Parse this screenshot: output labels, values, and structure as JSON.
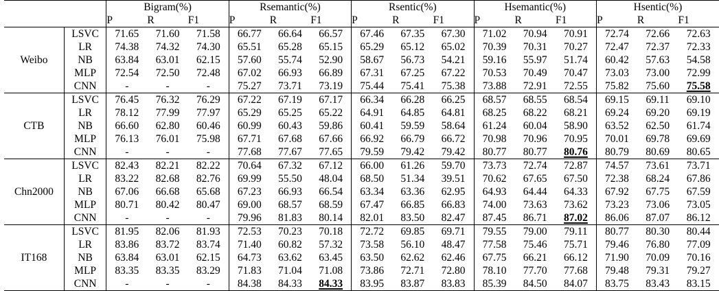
{
  "header": {
    "groups": [
      "Bigram(%)",
      "Rsemantic(%)",
      "Rsentic(%)",
      "Hsemantic(%)",
      "Hsentic(%)"
    ],
    "metrics": [
      "P",
      "R",
      "F1"
    ]
  },
  "datasets": [
    {
      "name": "Weibo",
      "rows": [
        {
          "model": "LSVC",
          "values": [
            "71.65",
            "71.60",
            "71.58",
            "66.77",
            "66.64",
            "66.57",
            "67.46",
            "67.35",
            "67.30",
            "71.02",
            "70.94",
            "70.91",
            "72.74",
            "72.66",
            "72.63"
          ]
        },
        {
          "model": "LR",
          "values": [
            "74.38",
            "74.32",
            "74.30",
            "65.51",
            "65.28",
            "65.15",
            "65.29",
            "65.12",
            "65.02",
            "70.39",
            "70.31",
            "70.27",
            "72.47",
            "72.37",
            "72.33"
          ]
        },
        {
          "model": "NB",
          "values": [
            "63.84",
            "63.01",
            "62.15",
            "57.60",
            "55.74",
            "52.90",
            "58.67",
            "56.73",
            "54.21",
            "59.16",
            "55.97",
            "51.74",
            "60.42",
            "57.63",
            "54.58"
          ]
        },
        {
          "model": "MLP",
          "values": [
            "72.54",
            "72.50",
            "72.48",
            "67.02",
            "66.93",
            "66.89",
            "67.31",
            "67.25",
            "67.22",
            "70.53",
            "70.49",
            "70.47",
            "73.03",
            "73.00",
            "72.99"
          ]
        },
        {
          "model": "CNN",
          "values": [
            "-",
            "-",
            "-",
            "75.27",
            "73.71",
            "73.19",
            "75.44",
            "75.41",
            "75.38",
            "73.88",
            "72.91",
            "72.55",
            "75.82",
            "75.60",
            "75.58"
          ]
        }
      ]
    },
    {
      "name": "CTB",
      "rows": [
        {
          "model": "LSVC",
          "values": [
            "76.45",
            "76.32",
            "76.29",
            "67.22",
            "67.19",
            "67.17",
            "66.34",
            "66.28",
            "66.25",
            "68.57",
            "68.55",
            "68.54",
            "69.15",
            "69.11",
            "69.10"
          ]
        },
        {
          "model": "LR",
          "values": [
            "78.12",
            "77.99",
            "77.97",
            "65.29",
            "65.25",
            "65.22",
            "64.91",
            "64.85",
            "64.81",
            "68.25",
            "68.22",
            "68.21",
            "69.24",
            "69.20",
            "69.19"
          ]
        },
        {
          "model": "NB",
          "values": [
            "66.60",
            "62.80",
            "60.46",
            "60.99",
            "60.43",
            "59.86",
            "60.41",
            "59.59",
            "58.64",
            "61.24",
            "60.04",
            "58.90",
            "63.52",
            "62.50",
            "61.74"
          ]
        },
        {
          "model": "MLP",
          "values": [
            "76.13",
            "76.01",
            "75.98",
            "67.71",
            "67.68",
            "67.66",
            "66.92",
            "66.79",
            "66.72",
            "70.98",
            "70.96",
            "70.95",
            "70.01",
            "69.78",
            "69.69"
          ]
        },
        {
          "model": "CNN",
          "values": [
            "-",
            "-",
            "-",
            "77.68",
            "77.67",
            "77.65",
            "79.59",
            "79.42",
            "79.42",
            "80.77",
            "80.77",
            "80.76",
            "80.79",
            "80.69",
            "80.65"
          ]
        }
      ]
    },
    {
      "name": "Chn2000",
      "rows": [
        {
          "model": "LSVC",
          "values": [
            "82.43",
            "82.21",
            "82.22",
            "70.64",
            "67.32",
            "67.12",
            "66.00",
            "61.26",
            "59.70",
            "73.73",
            "72.74",
            "72.87",
            "74.57",
            "73.61",
            "73.71"
          ]
        },
        {
          "model": "LR",
          "values": [
            "83.22",
            "82.68",
            "82.76",
            "69.99",
            "55.50",
            "48.04",
            "68.50",
            "51.34",
            "39.51",
            "70.62",
            "67.65",
            "67.50",
            "72.38",
            "68.24",
            "67.86"
          ]
        },
        {
          "model": "NB",
          "values": [
            "67.06",
            "66.68",
            "65.68",
            "67.23",
            "66.93",
            "66.54",
            "63.34",
            "63.36",
            "62.95",
            "64.93",
            "64.44",
            "64.33",
            "67.92",
            "67.75",
            "67.59"
          ]
        },
        {
          "model": "MLP",
          "values": [
            "80.71",
            "80.42",
            "80.47",
            "69.00",
            "68.57",
            "68.59",
            "67.47",
            "66.85",
            "66.83",
            "74.00",
            "73.63",
            "73.62",
            "73.23",
            "73.06",
            "73.05"
          ]
        },
        {
          "model": "CNN",
          "values": [
            "-",
            "-",
            "-",
            "79.96",
            "81.83",
            "80.14",
            "82.01",
            "83.50",
            "82.47",
            "87.45",
            "86.71",
            "87.02",
            "86.06",
            "87.07",
            "86.12"
          ]
        }
      ]
    },
    {
      "name": "IT168",
      "rows": [
        {
          "model": "LSVC",
          "values": [
            "81.95",
            "82.06",
            "81.93",
            "72.53",
            "70.23",
            "70.18",
            "72.72",
            "69.85",
            "69.71",
            "79.55",
            "79.00",
            "79.11",
            "80.77",
            "80.30",
            "80.44"
          ]
        },
        {
          "model": "LR",
          "values": [
            "83.86",
            "83.72",
            "83.74",
            "71.40",
            "60.82",
            "57.32",
            "73.58",
            "56.10",
            "48.47",
            "77.58",
            "75.46",
            "75.71",
            "79.46",
            "76.80",
            "77.09"
          ]
        },
        {
          "model": "NB",
          "values": [
            "63.84",
            "63.01",
            "62.15",
            "64.73",
            "63.62",
            "63.45",
            "63.50",
            "62.62",
            "62.46",
            "67.75",
            "66.21",
            "66.12",
            "71.90",
            "70.09",
            "70.16"
          ]
        },
        {
          "model": "MLP",
          "values": [
            "83.35",
            "83.35",
            "83.29",
            "71.83",
            "71.04",
            "71.08",
            "73.86",
            "72.71",
            "72.80",
            "78.10",
            "77.70",
            "77.68",
            "79.48",
            "79.31",
            "79.27"
          ]
        },
        {
          "model": "CNN",
          "values": [
            "-",
            "-",
            "-",
            "84.38",
            "84.33",
            "84.33",
            "83.95",
            "83.87",
            "83.83",
            "85.39",
            "84.50",
            "84.07",
            "83.75",
            "83.43",
            "83.15"
          ]
        }
      ]
    }
  ],
  "highlights": [
    {
      "dataset": 0,
      "row": 4,
      "col": 14
    },
    {
      "dataset": 1,
      "row": 4,
      "col": 11
    },
    {
      "dataset": 2,
      "row": 4,
      "col": 11
    },
    {
      "dataset": 3,
      "row": 4,
      "col": 5
    }
  ]
}
